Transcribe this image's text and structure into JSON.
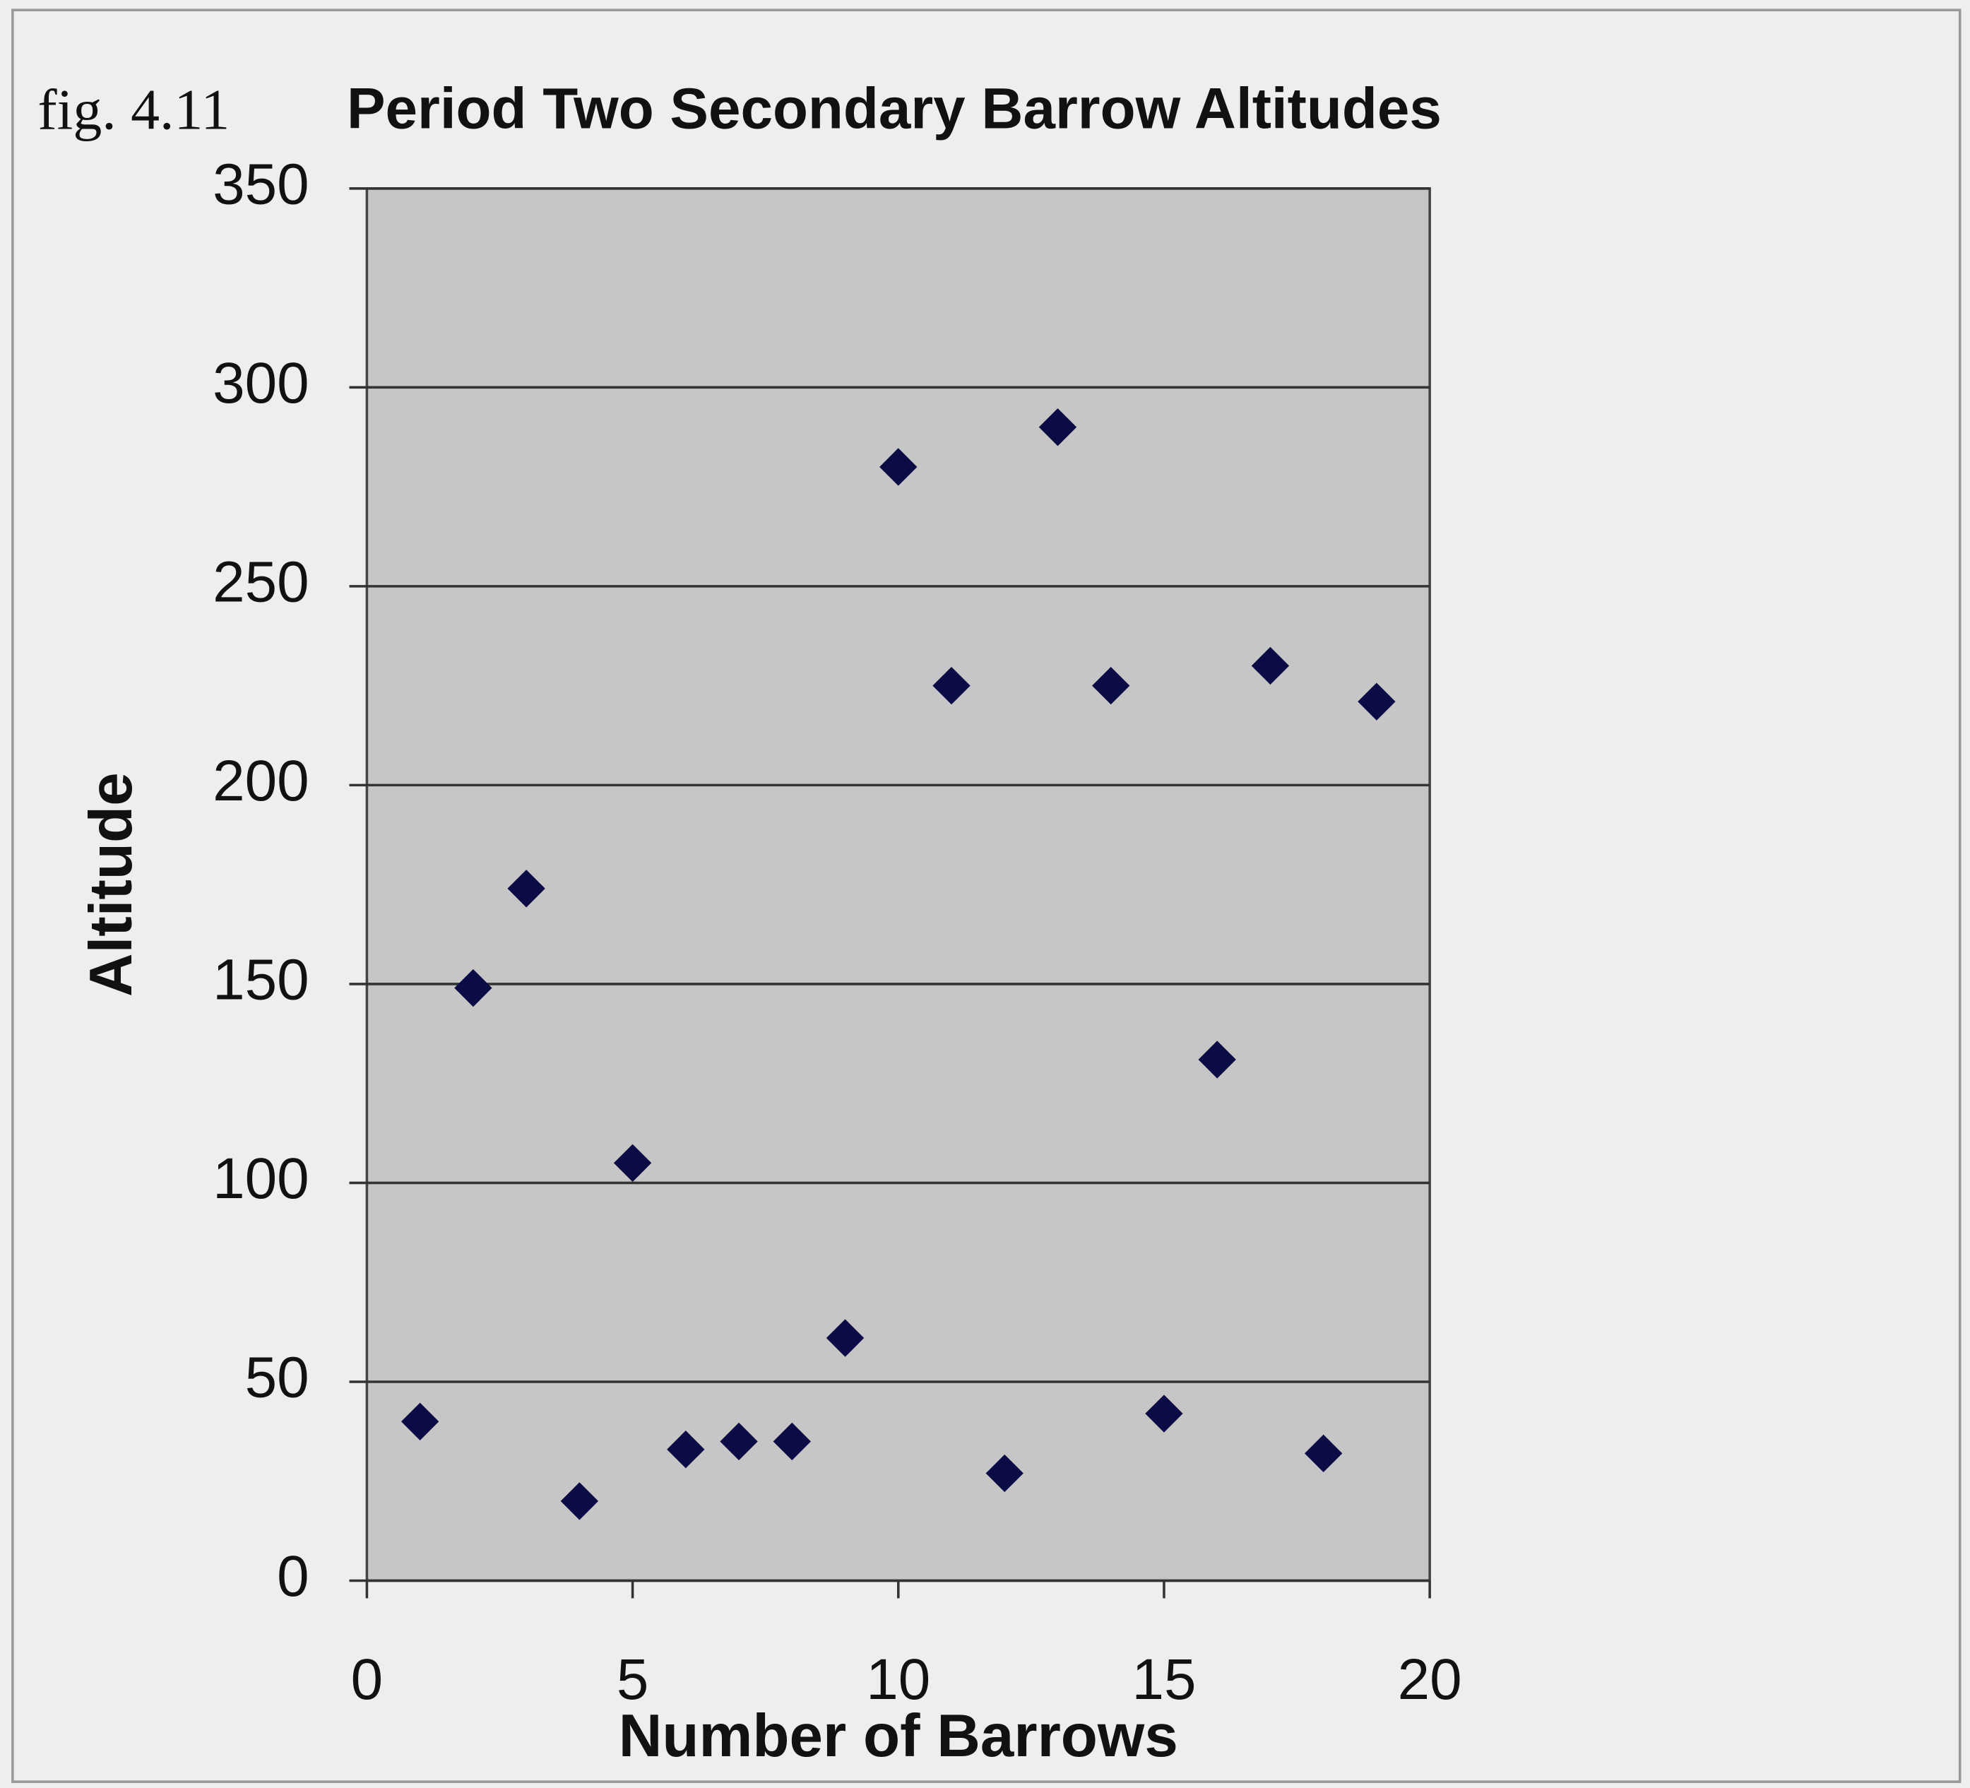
{
  "chart_data": {
    "type": "scatter",
    "figure_label": "fig. 4.11",
    "title": "Period Two Secondary Barrow Altitudes",
    "x_label": "Number of Barrows",
    "y_label": "Altitude",
    "x": [
      1,
      2,
      3,
      4,
      5,
      6,
      7,
      8,
      9,
      10,
      11,
      12,
      13,
      14,
      15,
      16,
      17,
      18,
      19
    ],
    "values": [
      40,
      149,
      174,
      20,
      105,
      33,
      35,
      35,
      61,
      280,
      225,
      27,
      290,
      225,
      42,
      131,
      230,
      32,
      221
    ],
    "color": "#0b0b45",
    "xlim": [
      0,
      20
    ],
    "xticks": [
      0,
      5,
      10,
      15,
      20
    ],
    "ylim": [
      0,
      350
    ],
    "yticks": [
      0,
      50,
      100,
      150,
      200,
      250,
      300,
      350
    ],
    "grid": true
  }
}
